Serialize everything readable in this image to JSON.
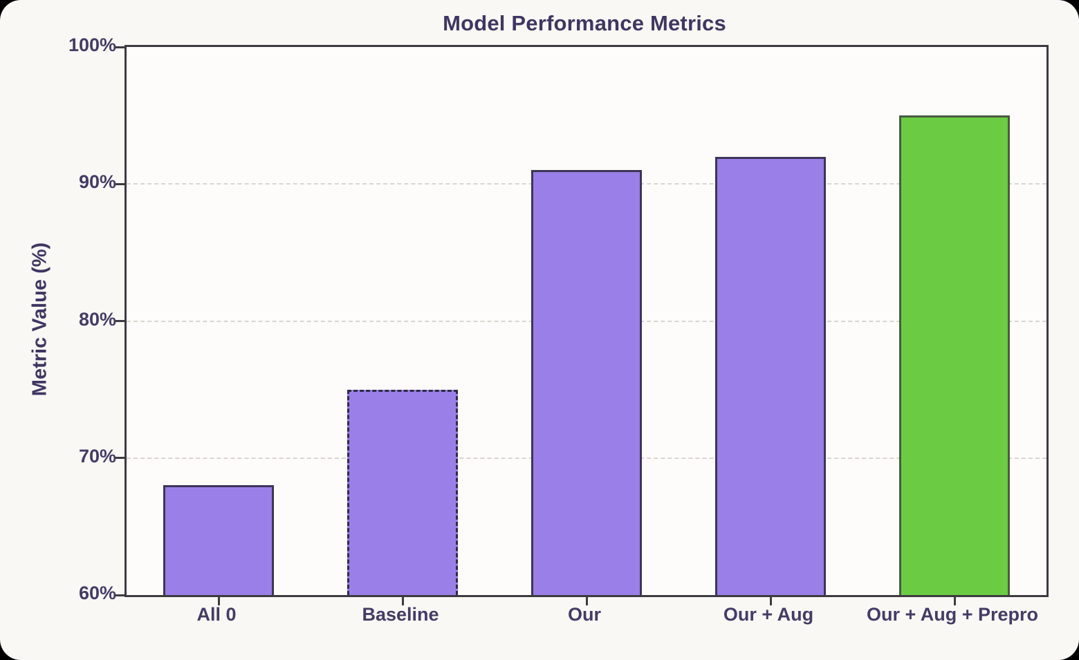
{
  "card": {
    "outer_background": "#000000",
    "background": "#faf8f5"
  },
  "chart_data": {
    "type": "bar",
    "title": "Model Performance Metrics",
    "xlabel": "",
    "ylabel": "Metric Value (%)",
    "ylim": [
      60,
      100
    ],
    "yticks": [
      60,
      70,
      80,
      90,
      100
    ],
    "ytick_labels": [
      "60%",
      "70%",
      "80%",
      "90%",
      "100%"
    ],
    "grid": "horizontal dashed gridlines at interior ticks (70%, 80%, 90%)",
    "legend_position": "none",
    "categories": [
      "All 0",
      "Baseline",
      "Our",
      "Our + Aug",
      "Our + Aug + Prepro"
    ],
    "values": [
      68,
      75,
      91,
      92,
      95
    ],
    "bars": [
      {
        "label": "All 0",
        "value": 68,
        "fill": "#9b7fe8",
        "border_color": "#3e3557",
        "border_style": "solid"
      },
      {
        "label": "Baseline",
        "value": 75,
        "fill": "#9b7fe8",
        "border_color": "#2f2b47",
        "border_style": "dashed"
      },
      {
        "label": "Our",
        "value": 91,
        "fill": "#9b7fe8",
        "border_color": "#3e3557",
        "border_style": "solid"
      },
      {
        "label": "Our + Aug",
        "value": 92,
        "fill": "#9b7fe8",
        "border_color": "#3e3557",
        "border_style": "solid"
      },
      {
        "label": "Our + Aug + Prepro",
        "value": 95,
        "fill": "#6bcc43",
        "border_color": "#4a5a40",
        "border_style": "solid"
      }
    ],
    "colors": {
      "title_text": "#3e3762",
      "tick_text": "#443c66",
      "axis_spine": "#3c3b40",
      "gridline": "#d9d5d0",
      "bar_purple": "#9b7fe8",
      "bar_green": "#6bcc43"
    }
  }
}
